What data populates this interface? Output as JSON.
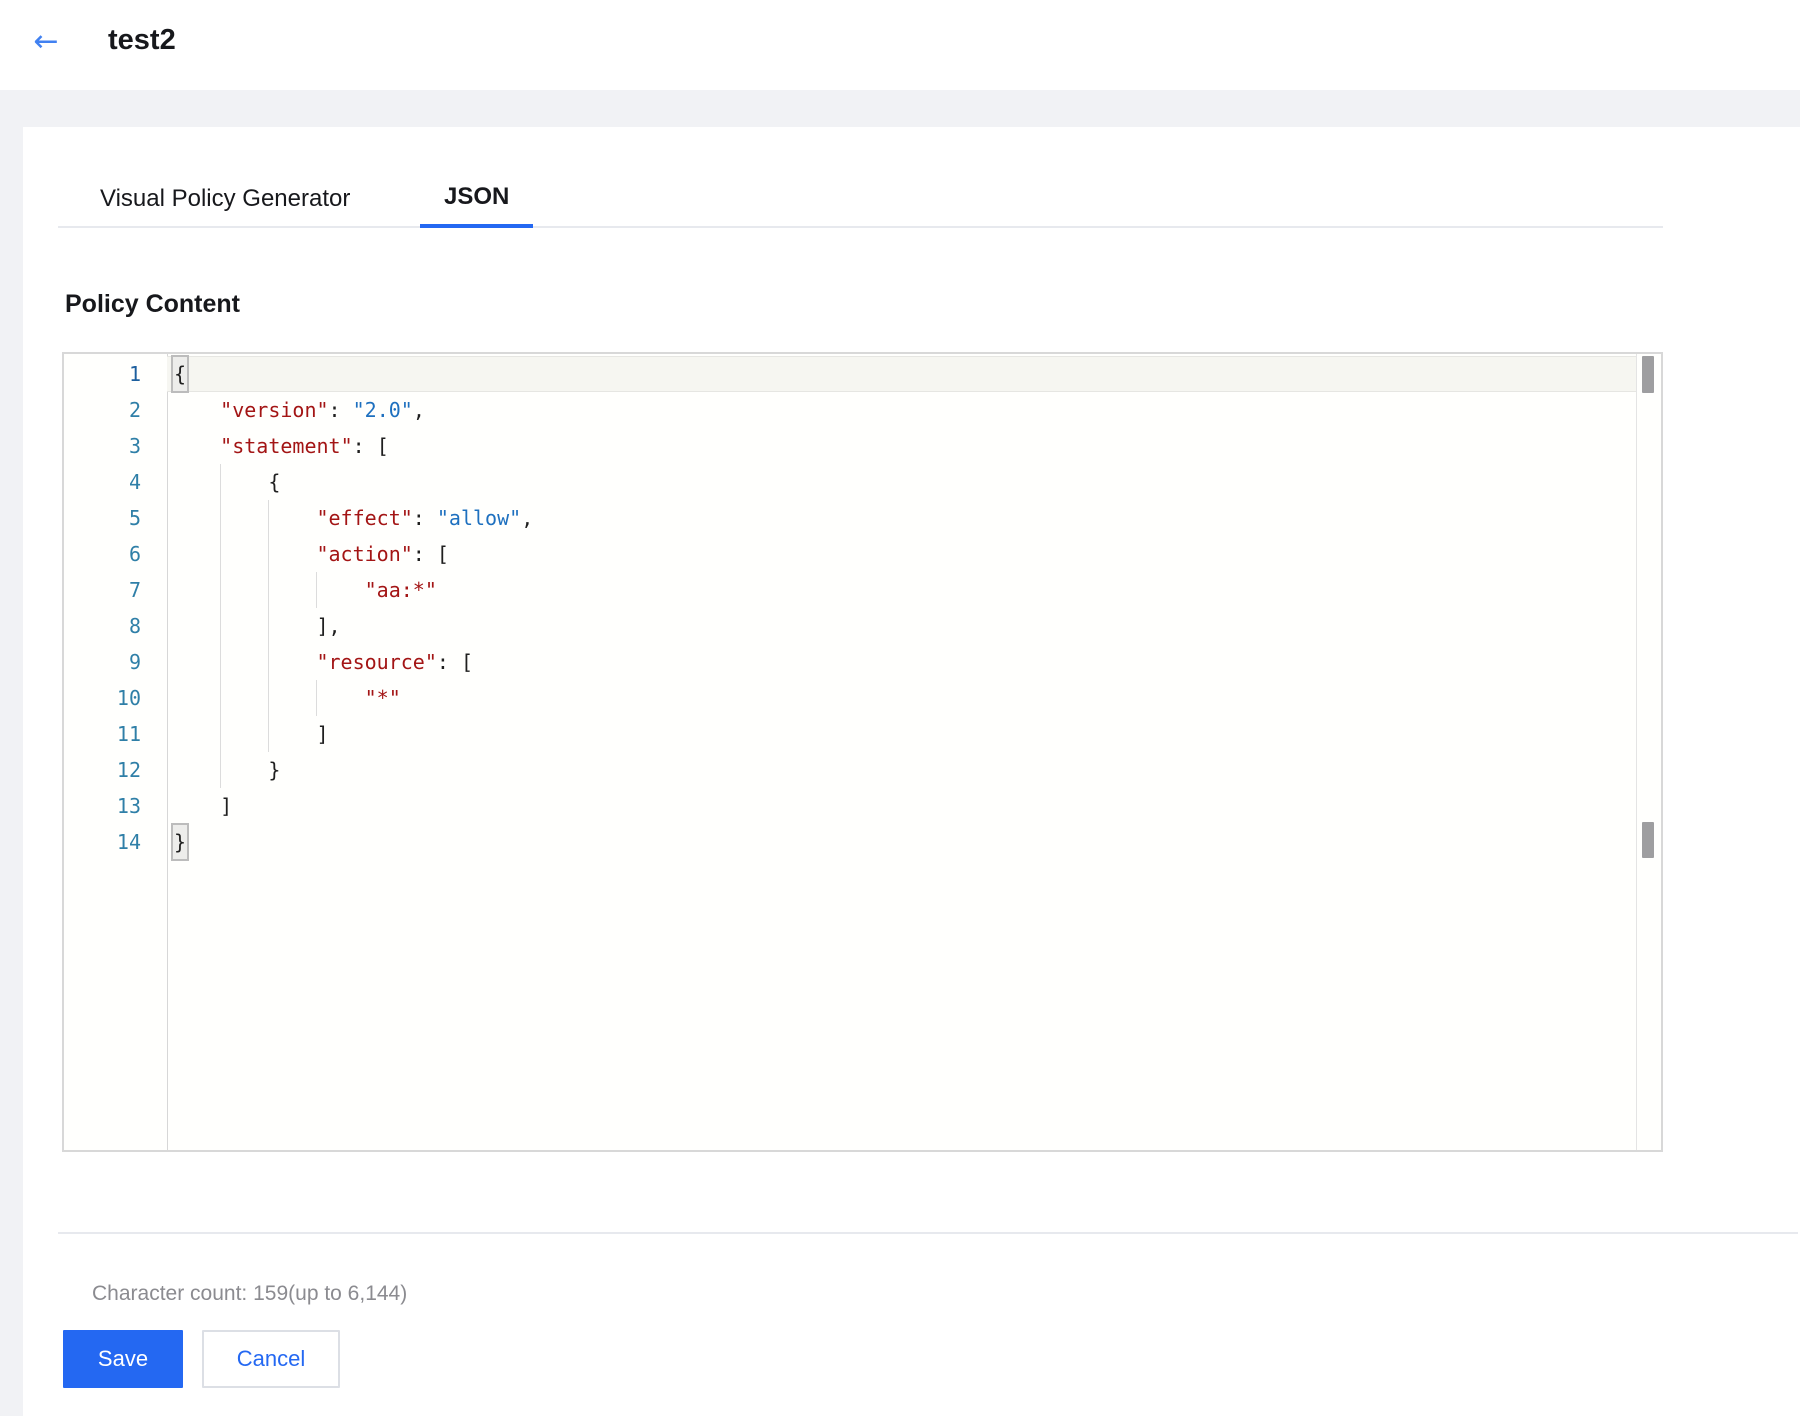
{
  "header": {
    "back_icon": "←",
    "title": "test2"
  },
  "tabs": [
    {
      "label": "Visual Policy Generator",
      "active": false
    },
    {
      "label": "JSON",
      "active": true
    }
  ],
  "section": {
    "heading": "Policy Content"
  },
  "editor": {
    "language": "json",
    "line_count": 14,
    "lines": [
      {
        "num": "1",
        "level": 0,
        "active": true,
        "tokens": [
          {
            "t": "{",
            "c": "brace"
          }
        ]
      },
      {
        "num": "2",
        "level": 1,
        "active": false,
        "tokens": [
          {
            "t": "\"version\"",
            "c": "key"
          },
          {
            "t": ": ",
            "c": "punct"
          },
          {
            "t": "\"2.0\"",
            "c": "val"
          },
          {
            "t": ",",
            "c": "punct"
          }
        ]
      },
      {
        "num": "3",
        "level": 1,
        "active": false,
        "tokens": [
          {
            "t": "\"statement\"",
            "c": "key"
          },
          {
            "t": ": [",
            "c": "punct"
          }
        ]
      },
      {
        "num": "4",
        "level": 2,
        "active": false,
        "tokens": [
          {
            "t": "{",
            "c": "punct"
          }
        ]
      },
      {
        "num": "5",
        "level": 3,
        "active": false,
        "tokens": [
          {
            "t": "\"effect\"",
            "c": "key"
          },
          {
            "t": ": ",
            "c": "punct"
          },
          {
            "t": "\"allow\"",
            "c": "val"
          },
          {
            "t": ",",
            "c": "punct"
          }
        ]
      },
      {
        "num": "6",
        "level": 3,
        "active": false,
        "tokens": [
          {
            "t": "\"action\"",
            "c": "key"
          },
          {
            "t": ": [",
            "c": "punct"
          }
        ]
      },
      {
        "num": "7",
        "level": 4,
        "active": false,
        "tokens": [
          {
            "t": "\"aa:*\"",
            "c": "str"
          }
        ]
      },
      {
        "num": "8",
        "level": 3,
        "active": false,
        "tokens": [
          {
            "t": "],",
            "c": "punct"
          }
        ]
      },
      {
        "num": "9",
        "level": 3,
        "active": false,
        "tokens": [
          {
            "t": "\"resource\"",
            "c": "key"
          },
          {
            "t": ": [",
            "c": "punct"
          }
        ]
      },
      {
        "num": "10",
        "level": 4,
        "active": false,
        "tokens": [
          {
            "t": "\"*\"",
            "c": "str"
          }
        ]
      },
      {
        "num": "11",
        "level": 3,
        "active": false,
        "tokens": [
          {
            "t": "]",
            "c": "punct"
          }
        ]
      },
      {
        "num": "12",
        "level": 2,
        "active": false,
        "tokens": [
          {
            "t": "}",
            "c": "punct"
          }
        ]
      },
      {
        "num": "13",
        "level": 1,
        "active": false,
        "tokens": [
          {
            "t": "]",
            "c": "punct"
          }
        ]
      },
      {
        "num": "14",
        "level": 0,
        "active": false,
        "tokens": [
          {
            "t": "}",
            "c": "brace"
          }
        ]
      }
    ]
  },
  "footer": {
    "char_count_label": "Character count:",
    "char_count_value": "159",
    "char_count_suffix": "(up to 6,144)",
    "save_label": "Save",
    "cancel_label": "Cancel"
  },
  "colors": {
    "accent_blue": "#2468f2",
    "back_arrow_blue": "#4181f1",
    "token_key_red": "#a31515",
    "token_value_blue": "#1e70bf",
    "line_number_teal": "#2f7fa7",
    "scrollbar_thumb_gray": "#9e9ea0",
    "page_background": "#f1f2f5"
  }
}
